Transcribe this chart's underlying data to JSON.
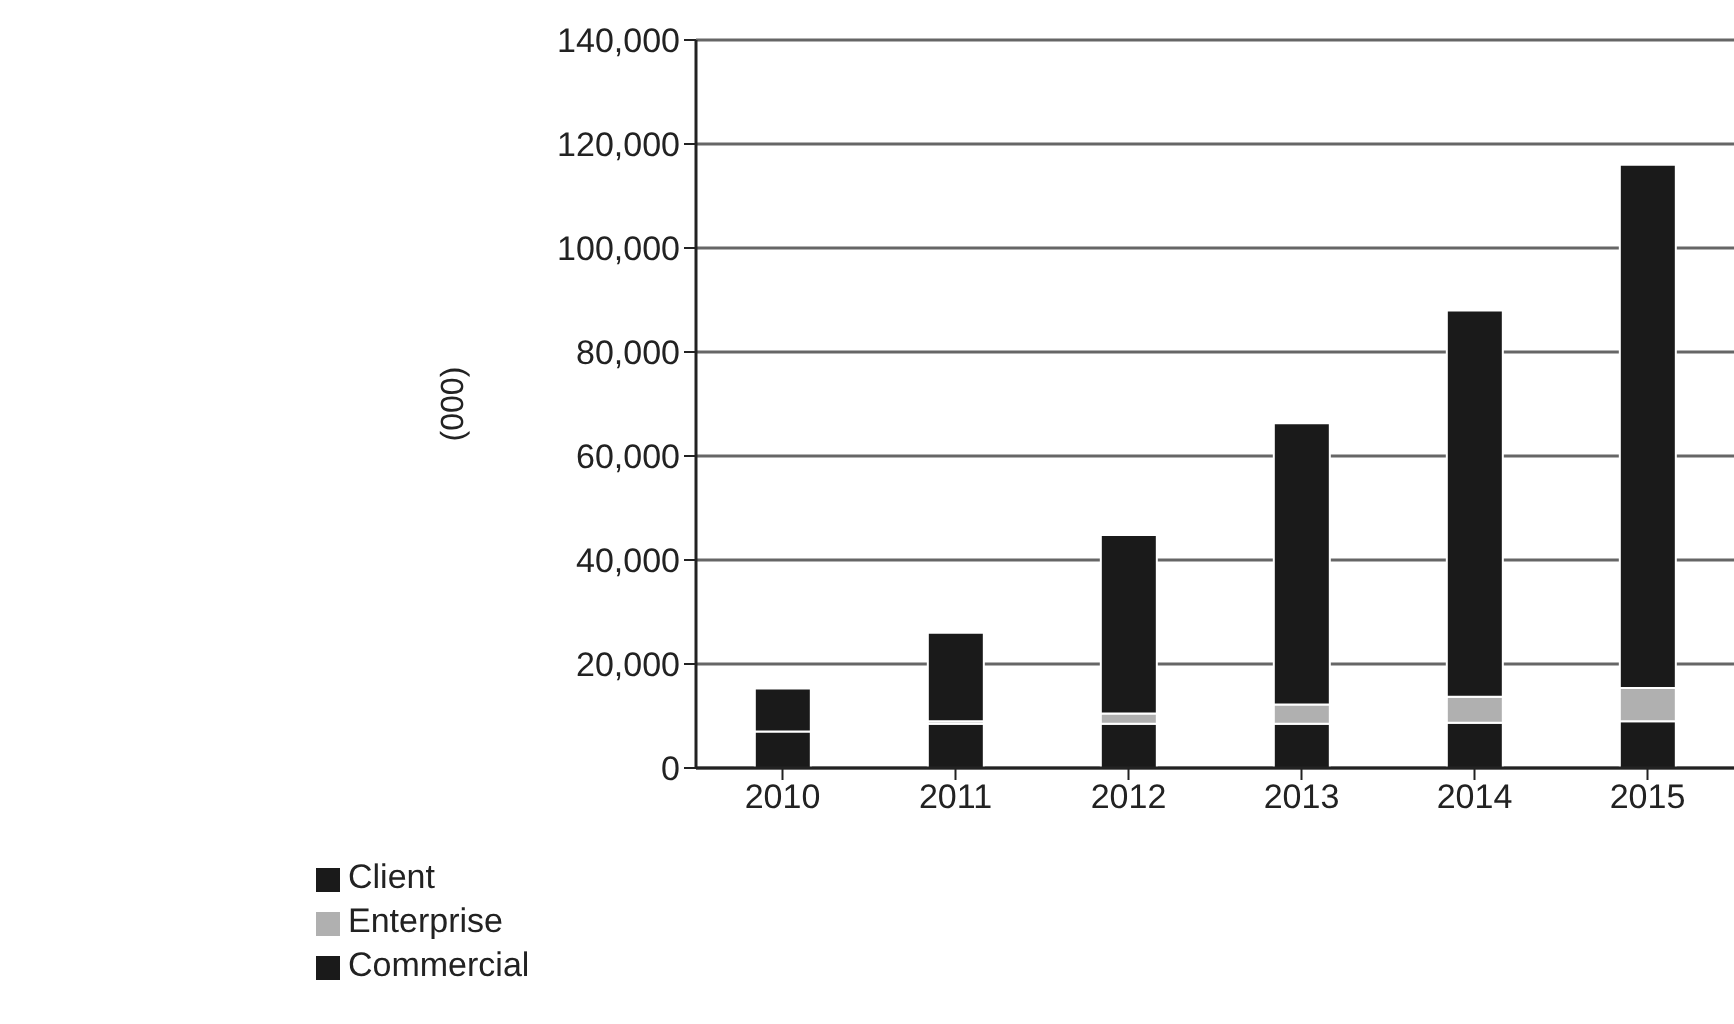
{
  "chart_data": {
    "type": "bar",
    "stacked": true,
    "ylabel": "(000)",
    "categories": [
      "2010",
      "2011",
      "2012",
      "2013",
      "2014",
      "2015"
    ],
    "series": [
      {
        "name": "Client",
        "color": "#1a1a1a",
        "values": [
          7000,
          8500,
          8500,
          8500,
          8700,
          9000
        ]
      },
      {
        "name": "Enterprise",
        "color": "#b0b0b0",
        "values": [
          null,
          500,
          2000,
          3700,
          5000,
          6400
        ]
      },
      {
        "name": "Commercial",
        "color": "#1a1a1a",
        "values": [
          8300,
          17000,
          34300,
          54100,
          74300,
          100600
        ]
      }
    ],
    "ylim": [
      0,
      140000
    ],
    "yticks": [
      {
        "value": 0,
        "label": "0"
      },
      {
        "value": 20000,
        "label": "20,000"
      },
      {
        "value": 40000,
        "label": "40,000"
      },
      {
        "value": 60000,
        "label": "60,000"
      },
      {
        "value": 80000,
        "label": "80,000"
      },
      {
        "value": 100000,
        "label": "100,000"
      },
      {
        "value": 120000,
        "label": "120,000"
      },
      {
        "value": 140000,
        "label": "140,000"
      }
    ],
    "grid": "y",
    "legend": "bottom left"
  }
}
